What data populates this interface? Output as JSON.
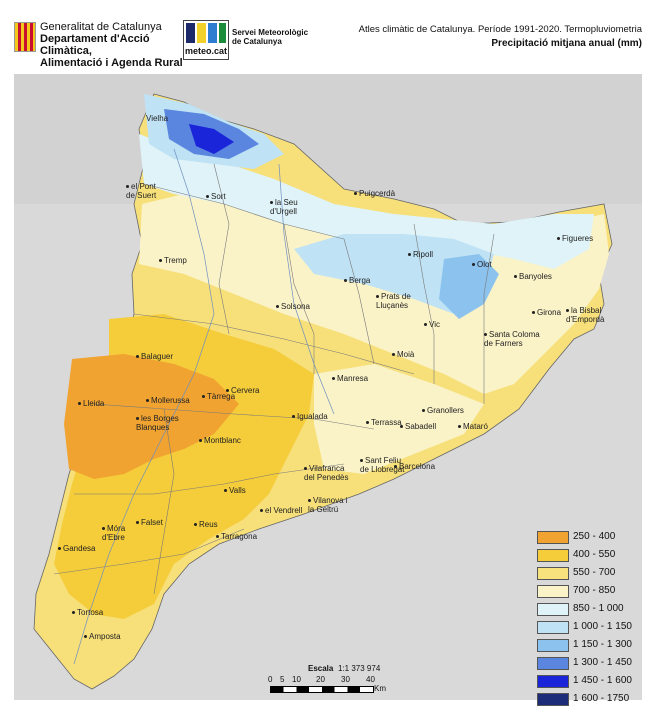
{
  "header": {
    "gencat_line1": "Generalitat de Catalunya",
    "gencat_line2": "Departament d'Acció Climàtica,",
    "gencat_line3": "Alimentació i Agenda Rural",
    "meteo_label": "meteo.cat",
    "smc_line1": "Servei Meteorològic",
    "smc_line2": "de Catalunya",
    "title": "Atles climàtic de Catalunya. Període 1991-2020. Termopluviometria",
    "subtitle": "Precipitació mitjana anual (mm)"
  },
  "places": [
    {
      "name": "Vielha"
    },
    {
      "name": "el Pont de Suert"
    },
    {
      "name": "Sort"
    },
    {
      "name": "la Seu d'Urgell"
    },
    {
      "name": "Puigcerdà"
    },
    {
      "name": "Tremp"
    },
    {
      "name": "Ripoll"
    },
    {
      "name": "Olot"
    },
    {
      "name": "Figueres"
    },
    {
      "name": "Berga"
    },
    {
      "name": "Banyoles"
    },
    {
      "name": "Solsona"
    },
    {
      "name": "Prats de Lluçanès"
    },
    {
      "name": "Girona"
    },
    {
      "name": "la Bisbal d'Empordà"
    },
    {
      "name": "Vic"
    },
    {
      "name": "Santa Coloma de Farners"
    },
    {
      "name": "Balaguer"
    },
    {
      "name": "Moià"
    },
    {
      "name": "Manresa"
    },
    {
      "name": "Cervera"
    },
    {
      "name": "Lleida"
    },
    {
      "name": "Mollerussa"
    },
    {
      "name": "Tàrrega"
    },
    {
      "name": "les Borges Blanques"
    },
    {
      "name": "Igualada"
    },
    {
      "name": "Granollers"
    },
    {
      "name": "Terrassa"
    },
    {
      "name": "Sabadell"
    },
    {
      "name": "Mataró"
    },
    {
      "name": "Montblanc"
    },
    {
      "name": "Sant Feliu de Llobregat"
    },
    {
      "name": "Vilafranca del Penedès"
    },
    {
      "name": "Barcelona"
    },
    {
      "name": "Valls"
    },
    {
      "name": "Vilanova i la Geltrú"
    },
    {
      "name": "el Vendrell"
    },
    {
      "name": "Móra d'Ebre"
    },
    {
      "name": "Falset"
    },
    {
      "name": "Reus"
    },
    {
      "name": "Tarragona"
    },
    {
      "name": "Gandesa"
    },
    {
      "name": "Tortosa"
    },
    {
      "name": "Amposta"
    }
  ],
  "legend": [
    {
      "label": "250 - 400",
      "color": "#f0a330"
    },
    {
      "label": "400 - 550",
      "color": "#f5cc3a"
    },
    {
      "label": "550 - 700",
      "color": "#f8e27e"
    },
    {
      "label": "700 - 850",
      "color": "#fbf3c8"
    },
    {
      "label": "850 - 1 000",
      "color": "#dff3f8"
    },
    {
      "label": "1 000 - 1 150",
      "color": "#bfe2f5"
    },
    {
      "label": "1 150 - 1 300",
      "color": "#8cc2ee"
    },
    {
      "label": "1 300 - 1 450",
      "color": "#5a86e0"
    },
    {
      "label": "1 450 - 1 600",
      "color": "#1a24d8"
    },
    {
      "label": "1 600 - 1750",
      "color": "#1c2c78"
    }
  ],
  "scale": {
    "title": "Escala",
    "ratio": "1:1 373 974",
    "ticks": [
      "0",
      "5",
      "10",
      "20",
      "30",
      "40"
    ],
    "unit": "Km"
  }
}
